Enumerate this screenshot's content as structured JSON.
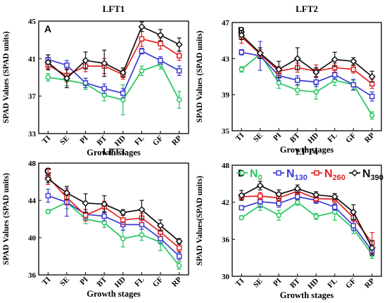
{
  "chart_data": [
    {
      "type": "line",
      "title": "LFT1",
      "letter": "A",
      "ylabel": "SPAD Values (SPAD units)",
      "xlabel": "Growth stages",
      "categories": [
        "TI",
        "SE",
        "PI",
        "BT",
        "HD",
        "FL",
        "GF",
        "RP"
      ],
      "ylim": [
        33,
        45
      ],
      "yticks": [
        33,
        37,
        41,
        45
      ],
      "series": [
        {
          "name": "N0",
          "color": "#22c55e",
          "values": [
            39.0,
            38.7,
            38.3,
            37.1,
            36.6,
            39.7,
            40.4,
            36.6
          ],
          "errors": [
            0.4,
            0.6,
            0.6,
            0.6,
            1.6,
            0.5,
            0.5,
            0.9
          ]
        },
        {
          "name": "N130",
          "color": "#3b3bd4",
          "values": [
            40.9,
            40.3,
            38.4,
            37.8,
            37.3,
            41.8,
            40.8,
            39.7
          ],
          "errors": [
            0.5,
            0.5,
            0.5,
            0.5,
            0.5,
            0.3,
            0.4,
            0.5
          ]
        },
        {
          "name": "N260",
          "color": "#e02020",
          "values": [
            40.3,
            39.2,
            40.2,
            40.2,
            39.3,
            43.1,
            42.6,
            41.3
          ],
          "errors": [
            0.4,
            0.6,
            0.6,
            0.8,
            0.5,
            0.8,
            0.6,
            0.5
          ]
        },
        {
          "name": "N390",
          "color": "#111111",
          "values": [
            40.6,
            38.9,
            40.8,
            40.5,
            39.5,
            44.4,
            43.5,
            42.5
          ],
          "errors": [
            0.8,
            1.0,
            0.9,
            1.4,
            0.5,
            0.5,
            0.6,
            0.7
          ]
        }
      ]
    },
    {
      "type": "line",
      "title": "LFT2",
      "letter": "B",
      "ylabel": "SPAD Values (SPAD units)",
      "xlabel": "Growth stages",
      "categories": [
        "TI",
        "SE",
        "PI",
        "BT",
        "HD",
        "FL",
        "GF",
        "RP"
      ],
      "ylim": [
        35,
        47
      ],
      "yticks": [
        35,
        39,
        43,
        47
      ],
      "series": [
        {
          "name": "N0",
          "color": "#22c55e",
          "values": [
            41.8,
            43.5,
            40.3,
            39.5,
            39.3,
            40.6,
            40.1,
            36.7
          ],
          "errors": [
            0.3,
            0.5,
            0.6,
            0.5,
            0.8,
            0.6,
            0.5,
            0.4
          ]
        },
        {
          "name": "N130",
          "color": "#3b3bd4",
          "values": [
            43.7,
            43.3,
            41.1,
            40.6,
            40.4,
            41.2,
            40.1,
            38.8
          ],
          "errors": [
            0.3,
            1.6,
            0.5,
            0.5,
            0.5,
            0.5,
            0.6,
            0.5
          ]
        },
        {
          "name": "N260",
          "color": "#e02020",
          "values": [
            45.4,
            43.5,
            41.6,
            42.0,
            41.6,
            42.0,
            41.8,
            40.2
          ],
          "errors": [
            0.7,
            0.5,
            0.5,
            0.5,
            0.7,
            0.5,
            0.4,
            0.5
          ]
        },
        {
          "name": "N390",
          "color": "#111111",
          "values": [
            45.6,
            43.6,
            41.8,
            43.0,
            41.5,
            42.9,
            42.7,
            41.0
          ],
          "errors": [
            0.5,
            0.6,
            0.9,
            1.2,
            0.5,
            0.8,
            0.4,
            0.6
          ]
        }
      ]
    },
    {
      "type": "line",
      "title": "LFT3",
      "letter": "C",
      "ylabel": "SPAD Values (SPAD units)",
      "xlabel": "Growth stages",
      "categories": [
        "TI",
        "SE",
        "PI",
        "BT",
        "HD",
        "FL",
        "GF",
        "RP"
      ],
      "ylim": [
        36,
        48
      ],
      "yticks": [
        36,
        40,
        44,
        48
      ],
      "series": [
        {
          "name": "N0",
          "color": "#22c55e",
          "values": [
            42.8,
            43.8,
            42.0,
            41.6,
            39.9,
            40.3,
            39.5,
            37.0
          ],
          "errors": [
            0.2,
            0.7,
            0.5,
            0.5,
            0.9,
            0.6,
            0.9,
            0.4
          ]
        },
        {
          "name": "N130",
          "color": "#3b3bd4",
          "values": [
            44.5,
            43.8,
            42.5,
            42.3,
            41.4,
            41.4,
            39.9,
            38.0
          ],
          "errors": [
            0.7,
            1.5,
            0.5,
            0.5,
            0.6,
            0.5,
            0.5,
            0.4
          ]
        },
        {
          "name": "N260",
          "color": "#e02020",
          "values": [
            46.5,
            44.3,
            42.4,
            43.3,
            41.9,
            42.1,
            40.6,
            38.9
          ],
          "errors": [
            0.8,
            0.8,
            0.6,
            0.6,
            0.5,
            0.5,
            0.5,
            0.4
          ]
        },
        {
          "name": "N390",
          "color": "#111111",
          "values": [
            46.3,
            44.8,
            43.7,
            43.6,
            42.7,
            43.0,
            41.3,
            39.6
          ],
          "errors": [
            0.4,
            0.7,
            1.0,
            0.9,
            0.3,
            1.0,
            0.6,
            0.3
          ]
        }
      ]
    },
    {
      "type": "line",
      "title": "LFT4",
      "letter": "D",
      "ylabel": "SPAD Values(SPAD units)",
      "xlabel": "Growth stages",
      "categories": [
        "TI",
        "SE",
        "PI",
        "BT",
        "HD",
        "FL",
        "GF",
        "RP"
      ],
      "ylim": [
        30,
        48
      ],
      "yticks": [
        30,
        36,
        42,
        48
      ],
      "legend": {
        "position": "top",
        "labels": [
          {
            "base": "N",
            "sub": "0"
          },
          {
            "base": "N",
            "sub": "130"
          },
          {
            "base": "N",
            "sub": "260"
          },
          {
            "base": "N",
            "sub": "390"
          }
        ]
      },
      "series": [
        {
          "name": "N0",
          "color": "#22c55e",
          "values": [
            39.5,
            41.5,
            39.9,
            42.0,
            39.7,
            40.4,
            37.7,
            33.5
          ],
          "errors": [
            0.3,
            0.8,
            0.8,
            0.5,
            0.5,
            1.3,
            0.8,
            0.6
          ]
        },
        {
          "name": "N130",
          "color": "#3b3bd4",
          "values": [
            41.1,
            42.1,
            41.8,
            42.9,
            42.3,
            41.2,
            38.2,
            34.1
          ],
          "errors": [
            0.3,
            0.9,
            0.6,
            0.5,
            0.5,
            0.5,
            0.8,
            0.5
          ]
        },
        {
          "name": "N260",
          "color": "#e02020",
          "values": [
            42.9,
            43.0,
            42.7,
            43.8,
            42.6,
            42.5,
            39.5,
            35.4
          ],
          "errors": [
            0.5,
            0.6,
            0.5,
            0.5,
            0.5,
            0.6,
            0.6,
            1.7
          ]
        },
        {
          "name": "N390",
          "color": "#111111",
          "values": [
            43.1,
            44.7,
            43.3,
            44.2,
            43.2,
            42.9,
            40.4,
            34.6
          ],
          "errors": [
            0.8,
            0.7,
            0.7,
            0.6,
            0.5,
            0.5,
            1.2,
            1.2
          ]
        }
      ]
    }
  ]
}
